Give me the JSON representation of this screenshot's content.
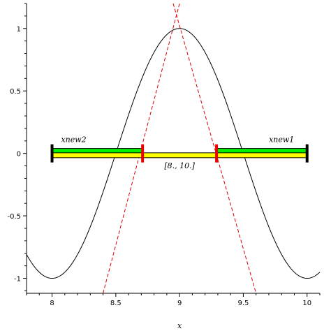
{
  "chart_data": {
    "type": "line",
    "xlabel": "x",
    "ylabel": "",
    "xlim": [
      7.8,
      10.1
    ],
    "ylim": [
      -1.12,
      1.2
    ],
    "x_ticks": [
      8,
      8.5,
      9,
      9.5,
      10
    ],
    "x_tick_labels": [
      "8",
      "8.5",
      "9",
      "9.5",
      "10"
    ],
    "y_ticks": [
      -1,
      -0.5,
      0,
      0.5,
      1
    ],
    "y_tick_labels": [
      "-1",
      "-0.5",
      "0",
      "0.5",
      "1"
    ],
    "grid": false,
    "curve": {
      "expression": "cos(pi*(x-9))",
      "x_range": [
        7.8,
        10.1
      ],
      "color": "#000000"
    },
    "tangent_lines": [
      {
        "x": [
          8.4,
          9.0
        ],
        "y": [
          -1.12,
          1.2
        ],
        "color": "#dd0000",
        "style": "dashed"
      },
      {
        "x": [
          8.95,
          9.6
        ],
        "y": [
          1.2,
          -1.12
        ],
        "color": "#dd0000",
        "style": "dashed"
      }
    ],
    "intervals": [
      {
        "x": [
          8.0,
          8.71
        ],
        "y": 0.02,
        "color": "#00ee00"
      },
      {
        "x": [
          9.29,
          10.0
        ],
        "y": 0.02,
        "color": "#00ee00"
      },
      {
        "x": [
          8.0,
          10.0
        ],
        "y": -0.015,
        "color": "#ffff00"
      }
    ],
    "markers": [
      {
        "x": 8.0,
        "color": "#000000"
      },
      {
        "x": 10.0,
        "color": "#000000"
      },
      {
        "x": 8.71,
        "color": "#ee0000"
      },
      {
        "x": 9.29,
        "color": "#ee0000"
      }
    ],
    "annotations": [
      {
        "text": "xnew2",
        "x": 8.17,
        "y": 0.09
      },
      {
        "text": "xnew1",
        "x": 9.8,
        "y": 0.09
      },
      {
        "text": "[8., 10.]",
        "x": 9.0,
        "y": -0.12
      }
    ]
  }
}
